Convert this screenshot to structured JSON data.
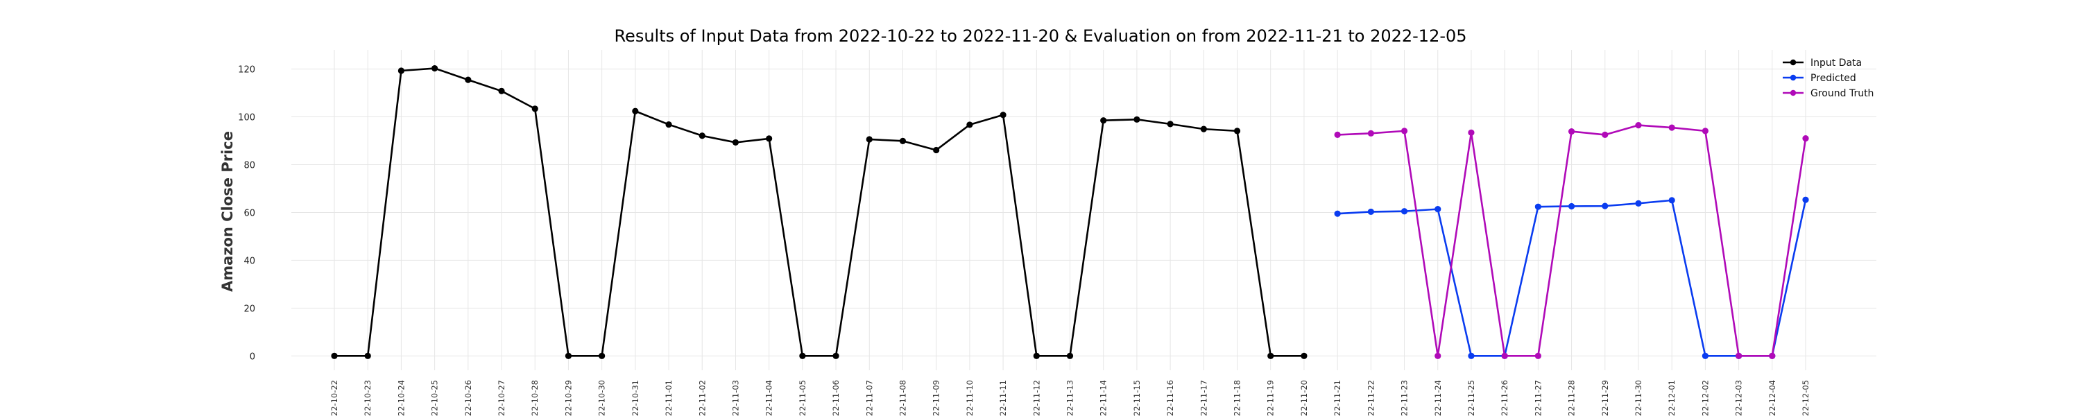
{
  "chart_data": {
    "type": "line",
    "title": "Results of Input Data from 2022-10-22 to 2022-11-20 & Evaluation on from 2022-11-21 to 2022-12-05",
    "xlabel": "",
    "ylabel": "Amazon Close Price",
    "ylim": [
      -6,
      128
    ],
    "yticks": [
      0,
      20,
      40,
      60,
      80,
      100,
      120
    ],
    "grid": true,
    "legend_position": "top-right",
    "x": [
      "2022-10-22",
      "2022-10-23",
      "2022-10-24",
      "2022-10-25",
      "2022-10-26",
      "2022-10-27",
      "2022-10-28",
      "2022-10-29",
      "2022-10-30",
      "2022-10-31",
      "2022-11-01",
      "2022-11-02",
      "2022-11-03",
      "2022-11-04",
      "2022-11-05",
      "2022-11-06",
      "2022-11-07",
      "2022-11-08",
      "2022-11-09",
      "2022-11-10",
      "2022-11-11",
      "2022-11-12",
      "2022-11-13",
      "2022-11-14",
      "2022-11-15",
      "2022-11-16",
      "2022-11-17",
      "2022-11-18",
      "2022-11-19",
      "2022-11-20",
      "2022-11-21",
      "2022-11-22",
      "2022-11-23",
      "2022-11-24",
      "2022-11-25",
      "2022-11-26",
      "2022-11-27",
      "2022-11-28",
      "2022-11-29",
      "2022-11-30",
      "2022-12-01",
      "2022-12-02",
      "2022-12-03",
      "2022-12-04",
      "2022-12-05"
    ],
    "tick_labels": [
      "2022-10-22",
      "2022-10-23",
      "2022-10-24",
      "2022-10-25",
      "2022-10-26",
      "2022-10-27",
      "2022-10-28",
      "2022-10-29",
      "2022-10-30",
      "2022-10-31",
      "2022-11-01",
      "2022-11-02",
      "2022-11-03",
      "2022-11-04",
      "2022-11-05",
      "2022-11-06",
      "2022-11-07",
      "2022-11-08",
      "2022-11-09",
      "2022-11-10",
      "2022-11-11",
      "2022-11-12",
      "2022-11-13",
      "2022-11-14",
      "2022-11-15",
      "2022-11-16",
      "2022-11-17",
      "2022-11-18",
      "2022-11-19",
      "2022-11-20",
      "2022-11-21",
      "2022-11-22",
      "2022-11-23",
      "2022-11-24",
      "2022-11-25",
      "2022-11-26",
      "2022-11-27",
      "2022-11-28",
      "2022-11-29",
      "2022-11-30",
      "2022-12-01",
      "2022-12-02",
      "2022-12-03",
      "2022-12-04",
      "2022-12-05"
    ],
    "series": [
      {
        "name": "Input Data",
        "color": "#000000",
        "x": [
          "2022-10-22",
          "2022-10-23",
          "2022-10-24",
          "2022-10-25",
          "2022-10-26",
          "2022-10-27",
          "2022-10-28",
          "2022-10-29",
          "2022-10-30",
          "2022-10-31",
          "2022-11-01",
          "2022-11-02",
          "2022-11-03",
          "2022-11-04",
          "2022-11-05",
          "2022-11-06",
          "2022-11-07",
          "2022-11-08",
          "2022-11-09",
          "2022-11-10",
          "2022-11-11",
          "2022-11-12",
          "2022-11-13",
          "2022-11-14",
          "2022-11-15",
          "2022-11-16",
          "2022-11-17",
          "2022-11-18",
          "2022-11-19",
          "2022-11-20"
        ],
        "values": [
          0,
          0,
          119.3,
          120.3,
          115.5,
          110.8,
          103.4,
          0,
          0,
          102.4,
          96.8,
          92.1,
          89.3,
          90.9,
          0,
          0,
          90.6,
          89.9,
          86.1,
          96.7,
          100.8,
          0,
          0,
          98.5,
          98.9,
          97.0,
          94.9,
          94.1,
          0,
          0
        ]
      },
      {
        "name": "Predicted",
        "color": "#0a3cf0",
        "x": [
          "2022-11-21",
          "2022-11-22",
          "2022-11-23",
          "2022-11-24",
          "2022-11-25",
          "2022-11-26",
          "2022-11-27",
          "2022-11-28",
          "2022-11-29",
          "2022-11-30",
          "2022-12-01",
          "2022-12-02",
          "2022-12-03",
          "2022-12-04",
          "2022-12-05"
        ],
        "values": [
          59.5,
          60.3,
          60.5,
          61.4,
          0,
          0,
          62.4,
          62.6,
          62.7,
          63.8,
          65.1,
          0,
          0,
          0,
          65.3
        ]
      },
      {
        "name": "Ground Truth",
        "color": "#b00ab8",
        "x": [
          "2022-11-21",
          "2022-11-22",
          "2022-11-23",
          "2022-11-24",
          "2022-11-25",
          "2022-11-26",
          "2022-11-27",
          "2022-11-28",
          "2022-11-29",
          "2022-11-30",
          "2022-12-01",
          "2022-12-02",
          "2022-12-03",
          "2022-12-04",
          "2022-12-05"
        ],
        "values": [
          92.5,
          93.1,
          94.1,
          0,
          93.4,
          0,
          0,
          93.9,
          92.5,
          96.5,
          95.5,
          94.1,
          0,
          0,
          91.0
        ]
      }
    ]
  }
}
